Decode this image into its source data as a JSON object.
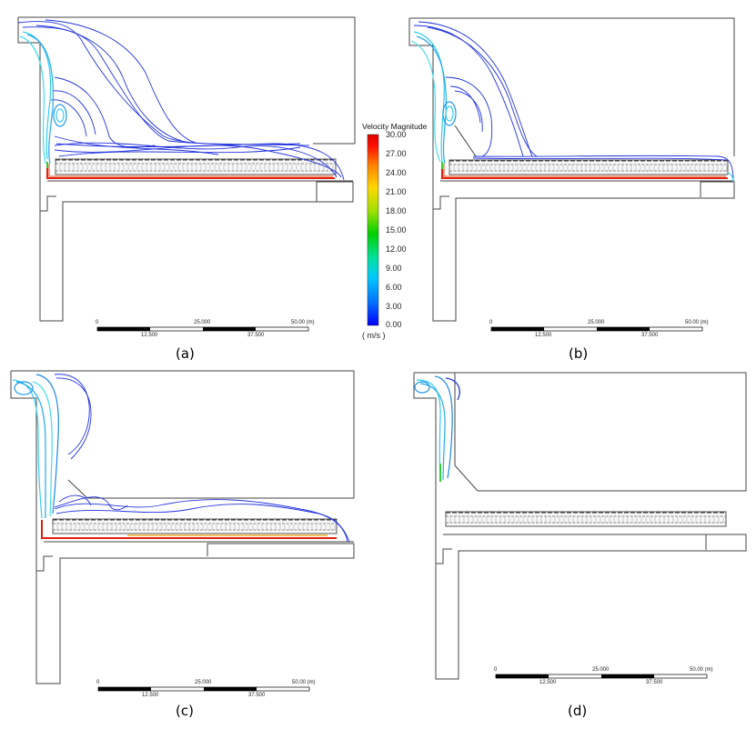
{
  "panels": [
    {
      "caption": "(a)"
    },
    {
      "caption": "(b)"
    },
    {
      "caption": "(c)"
    },
    {
      "caption": "(d)"
    }
  ],
  "colorbar": {
    "title": "Velocity Magnitude",
    "unit": "( m/s )",
    "ticks": [
      "30.00",
      "27.00",
      "24.00",
      "21.00",
      "18.00",
      "15.00",
      "12.00",
      "9.00",
      "6.00",
      "3.00",
      "0.00"
    ],
    "colors": [
      "#0000ff",
      "#0070ff",
      "#00c8ff",
      "#00e0a0",
      "#00d000",
      "#a0e000",
      "#ffd800",
      "#ff8000",
      "#ff1000",
      "#dd0000"
    ]
  },
  "scalebar": {
    "top_labels": [
      "0",
      "25.000",
      "50.00  (m)"
    ],
    "bottom_labels": [
      "12.500",
      "37.500"
    ]
  },
  "colors": {
    "streamline": "#2233dd",
    "streamline_fast": "#33ccee",
    "jet": "#e02010",
    "outline": "#444444"
  }
}
